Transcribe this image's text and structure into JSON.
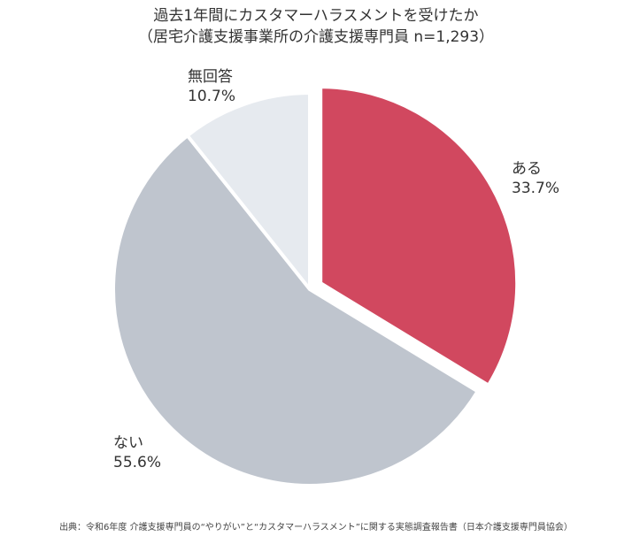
{
  "chart_data": {
    "type": "pie",
    "title": "過去1年間にカスタマーハラスメントを受けたか",
    "subtitle": "（居宅介護支援事業所の介護支援専門員 n=1,293）",
    "slices": [
      {
        "name": "ある",
        "value": 33.7,
        "value_label": "33.7%",
        "color": "#d1485f",
        "exploded": true
      },
      {
        "name": "ない",
        "value": 55.6,
        "value_label": "55.6%",
        "color": "#bfc5ce",
        "exploded": false
      },
      {
        "name": "無回答",
        "value": 10.7,
        "value_label": "10.7%",
        "color": "#e6eaef",
        "exploded": false
      }
    ],
    "start": "12 o'clock",
    "direction": "clockwise",
    "source": "出典：令和6年度 介護支援専門員の“やりがい”と“カスタマーハラスメント”に関する実態調査報告書（日本介護支援専門員協会）"
  }
}
